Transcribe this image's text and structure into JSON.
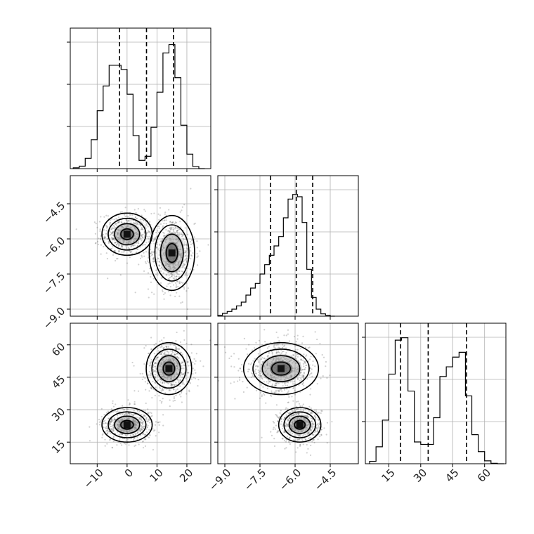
{
  "chart_data": [
    {
      "type": "histogram",
      "panel": "marginal-x1",
      "x": [
        -17,
        -15,
        -13,
        -11,
        -9,
        -7,
        -5,
        -3,
        -1,
        1,
        3,
        5,
        7,
        9,
        11,
        13,
        15,
        17,
        19,
        21,
        23,
        25
      ],
      "values": [
        0.02,
        0.06,
        0.25,
        0.7,
        1.4,
        2.0,
        2.5,
        2.5,
        2.4,
        1.8,
        0.8,
        0.2,
        0.3,
        1.0,
        1.85,
        2.8,
        3.0,
        2.2,
        1.05,
        0.35,
        0.05,
        0.0
      ],
      "quantiles": [
        -2.5,
        6.5,
        15.5
      ],
      "xlim": [
        -19,
        28
      ],
      "ylim": [
        0,
        3.4
      ]
    },
    {
      "type": "scatter-contour",
      "panel": "x2-vs-x1",
      "xlim": [
        -19,
        28
      ],
      "ylim": [
        -9.3,
        -3.3
      ],
      "yticks": [
        "−4.5",
        "−6.0",
        "−7.5",
        "−9.0"
      ],
      "yticks_values": [
        -4.5,
        -6.0,
        -7.5,
        -9.0
      ],
      "modes": [
        {
          "x": 0,
          "y": -5.8,
          "sx": 4.2,
          "sy": 0.45
        },
        {
          "x": 15,
          "y": -6.6,
          "sx": 3.8,
          "sy": 0.8
        }
      ]
    },
    {
      "type": "histogram",
      "panel": "marginal-x2",
      "x": [
        -9.2,
        -9.0,
        -8.8,
        -8.6,
        -8.4,
        -8.2,
        -8.0,
        -7.8,
        -7.6,
        -7.4,
        -7.2,
        -7.0,
        -6.8,
        -6.6,
        -6.4,
        -6.2,
        -6.0,
        -5.8,
        -5.6,
        -5.4,
        -5.2,
        -5.0,
        -4.8,
        -4.6,
        -4.4
      ],
      "values": [
        0.02,
        0.06,
        0.1,
        0.15,
        0.22,
        0.3,
        0.45,
        0.6,
        0.7,
        0.9,
        1.1,
        1.3,
        1.5,
        1.7,
        2.1,
        2.5,
        2.6,
        2.55,
        2.0,
        1.0,
        0.4,
        0.15,
        0.05,
        0.02,
        0.0
      ],
      "quantiles": [
        -7.05,
        -5.95,
        -5.25
      ],
      "xlim": [
        -9.3,
        -3.3
      ],
      "ylim": [
        0,
        3.0
      ]
    },
    {
      "type": "scatter-contour",
      "panel": "x3-vs-x1",
      "xlim": [
        -19,
        28
      ],
      "ylim": [
        5,
        70
      ],
      "yticks": [
        "60",
        "45",
        "30",
        "15"
      ],
      "yticks_values": [
        60,
        45,
        30,
        15
      ],
      "xticks": [
        "−10",
        "0",
        "10",
        "20"
      ],
      "xticks_values": [
        -10,
        0,
        10,
        20
      ],
      "modes": [
        {
          "x": 0,
          "y": 23,
          "sx": 4.2,
          "sy": 4
        },
        {
          "x": 14,
          "y": 49,
          "sx": 3.8,
          "sy": 6
        }
      ]
    },
    {
      "type": "scatter-contour",
      "panel": "x3-vs-x2",
      "xlim": [
        -9.3,
        -3.3
      ],
      "ylim": [
        5,
        70
      ],
      "xticks": [
        "−9.0",
        "−7.5",
        "−6.0",
        "−4.5"
      ],
      "xticks_values": [
        -9.0,
        -7.5,
        -6.0,
        -4.5
      ],
      "modes": [
        {
          "x": -6.6,
          "y": 49,
          "sx": 0.8,
          "sy": 6
        },
        {
          "x": -5.8,
          "y": 23,
          "sx": 0.45,
          "sy": 4
        }
      ]
    },
    {
      "type": "histogram",
      "panel": "marginal-x3",
      "x": [
        7.5,
        10.5,
        13.5,
        16.5,
        19.5,
        22.5,
        25.5,
        28.5,
        31.5,
        34.5,
        37.5,
        40.5,
        43.5,
        46.5,
        49.5,
        52.5,
        55.5,
        58.5,
        61.5,
        64.5,
        67.5
      ],
      "values": [
        0.05,
        0.35,
        0.9,
        1.85,
        2.55,
        2.6,
        1.5,
        0.45,
        0.4,
        0.4,
        0.95,
        1.8,
        2.0,
        2.2,
        2.3,
        1.4,
        0.6,
        0.25,
        0.06,
        0.01,
        0.0
      ],
      "quantiles": [
        20.5,
        33.5,
        51.5
      ],
      "xlim": [
        4,
        70
      ],
      "ylim": [
        0,
        2.9
      ],
      "xticks": [
        "15",
        "30",
        "45",
        "60"
      ],
      "xticks_values": [
        15,
        30,
        45,
        60
      ]
    }
  ]
}
